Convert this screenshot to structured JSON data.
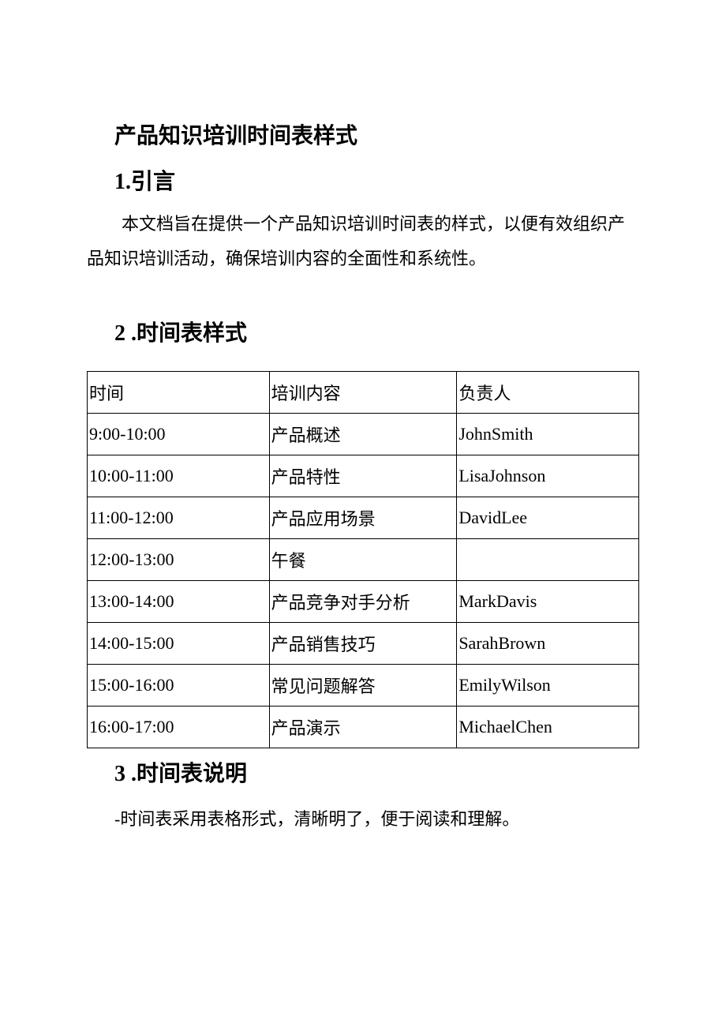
{
  "title": "产品知识培训时间表样式",
  "sections": {
    "intro": {
      "heading": "1.引言",
      "body": "本文档旨在提供一个产品知识培训时间表的样式，以便有效组织产品知识培训活动，确保培训内容的全面性和系统性。"
    },
    "schedule": {
      "heading": "2 .时间表样式"
    },
    "explanation": {
      "heading": "3 .时间表说明",
      "body": "-时间表采用表格形式，清晰明了，便于阅读和理解。"
    }
  },
  "table": {
    "columns": [
      "时间",
      "培训内容",
      "负责人"
    ],
    "rows": [
      [
        "9:00-10:00",
        "产品概述",
        "JohnSmith"
      ],
      [
        "10:00-11:00",
        "产品特性",
        "LisaJohnson"
      ],
      [
        "11:00-12:00",
        "产品应用场景",
        "DavidLee"
      ],
      [
        "12:00-13:00",
        "午餐",
        ""
      ],
      [
        "13:00-14:00",
        "产品竞争对手分析",
        "MarkDavis"
      ],
      [
        "14:00-15:00",
        "产品销售技巧",
        "SarahBrown"
      ],
      [
        "15:00-16:00",
        "常见问题解答",
        "EmilyWilson"
      ],
      [
        "16:00-17:00",
        "产品演示",
        "MichaelChen"
      ]
    ],
    "col_widths": [
      "33%",
      "34%",
      "33%"
    ],
    "border_color": "#000000",
    "font_size": 22,
    "cell_padding": 10
  },
  "styles": {
    "background_color": "#ffffff",
    "text_color": "#000000",
    "title_fontsize": 28,
    "body_fontsize": 22,
    "line_height": 2.0
  }
}
